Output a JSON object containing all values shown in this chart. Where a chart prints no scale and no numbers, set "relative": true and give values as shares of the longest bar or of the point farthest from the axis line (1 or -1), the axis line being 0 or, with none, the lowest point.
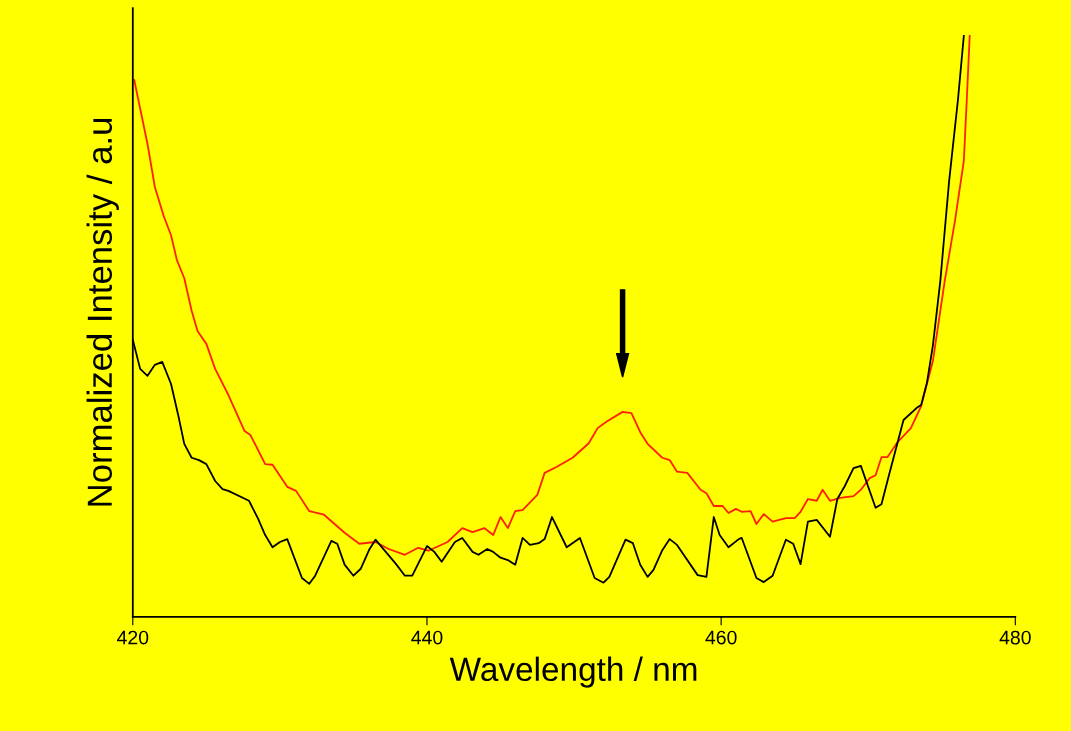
{
  "chart_data": {
    "type": "line",
    "xlabel": "Wavelength / nm",
    "ylabel": "Normalized Intensity / a.u",
    "relative": true,
    "xlim": [
      420,
      480
    ],
    "xticks": [
      420,
      440,
      460,
      480
    ],
    "tick_labels": "x",
    "grid": false,
    "legend": false,
    "marker": "none",
    "line_style": "solid",
    "series": [
      {
        "color": "#ff2000",
        "x": [
          420.1,
          421.0,
          421.5,
          422.1,
          422.6,
          423.0,
          423.5,
          424.0,
          424.4,
          425.0,
          425.6,
          426.5,
          427.6,
          428.0,
          429.0,
          429.5,
          430.5,
          431.1,
          432.0,
          433.0,
          434.4,
          435.4,
          436.5,
          437.4,
          438.5,
          439.4,
          440.1,
          441.4,
          442.4,
          443.1,
          443.9,
          444.5,
          445.0,
          445.5,
          446.0,
          446.5,
          447.5,
          448.0,
          448.8,
          449.9,
          451.0,
          451.6,
          452.2,
          453.3,
          453.9,
          454.5,
          455.0,
          456.0,
          456.5,
          457.0,
          457.7,
          458.6,
          459.0,
          459.5,
          460.1,
          460.5,
          461.0,
          461.4,
          462.0,
          462.4,
          462.9,
          463.5,
          464.4,
          465.0,
          465.4,
          465.9,
          466.5,
          466.9,
          467.4,
          468.1,
          469.0,
          469.5,
          470.1,
          470.5,
          470.9,
          471.3,
          472.0,
          472.9,
          473.6,
          474.4,
          475.2,
          475.9,
          476.5,
          476.7,
          476.9
        ],
        "values": [
          0.924,
          0.814,
          0.74,
          0.69,
          0.657,
          0.614,
          0.583,
          0.527,
          0.492,
          0.47,
          0.427,
          0.382,
          0.32,
          0.313,
          0.263,
          0.262,
          0.224,
          0.217,
          0.182,
          0.176,
          0.145,
          0.126,
          0.129,
          0.117,
          0.107,
          0.119,
          0.114,
          0.129,
          0.153,
          0.146,
          0.153,
          0.141,
          0.172,
          0.153,
          0.182,
          0.184,
          0.21,
          0.248,
          0.258,
          0.274,
          0.299,
          0.325,
          0.336,
          0.353,
          0.351,
          0.318,
          0.298,
          0.274,
          0.27,
          0.25,
          0.248,
          0.219,
          0.213,
          0.191,
          0.191,
          0.179,
          0.186,
          0.181,
          0.182,
          0.16,
          0.177,
          0.164,
          0.17,
          0.17,
          0.181,
          0.203,
          0.2,
          0.219,
          0.2,
          0.205,
          0.208,
          0.219,
          0.239,
          0.244,
          0.275,
          0.275,
          0.301,
          0.325,
          0.363,
          0.441,
          0.578,
          0.682,
          0.785,
          0.89,
          1.0
        ]
      },
      {
        "color": "#000000",
        "x": [
          420.0,
          420.5,
          421.0,
          421.5,
          422.0,
          422.6,
          423.1,
          423.5,
          424.0,
          424.5,
          425.0,
          425.6,
          426.1,
          426.5,
          427.9,
          428.5,
          429.0,
          429.5,
          430.0,
          430.5,
          431.5,
          432.0,
          432.4,
          433.5,
          433.9,
          434.4,
          435.0,
          435.5,
          436.1,
          436.5,
          437.9,
          438.5,
          439.0,
          440.0,
          440.5,
          441.0,
          441.9,
          442.4,
          443.1,
          443.5,
          444.1,
          444.5,
          445.0,
          445.5,
          446.0,
          446.5,
          447.0,
          447.6,
          448.0,
          448.5,
          449.5,
          450.4,
          451.4,
          452.0,
          452.4,
          453.5,
          454.0,
          454.5,
          455.0,
          455.4,
          456.0,
          456.5,
          457.0,
          458.4,
          459.0,
          459.5,
          459.9,
          460.5,
          461.2,
          461.4,
          462.4,
          462.9,
          463.5,
          464.4,
          464.9,
          465.4,
          465.9,
          466.5,
          467.4,
          467.9,
          468.4,
          469.0,
          469.5,
          470.5,
          470.9,
          471.4,
          472.4,
          473.3,
          473.6,
          474.0,
          474.4,
          474.9,
          475.5,
          476.1,
          476.5
        ],
        "values": [
          0.477,
          0.427,
          0.415,
          0.434,
          0.439,
          0.401,
          0.346,
          0.298,
          0.274,
          0.27,
          0.263,
          0.234,
          0.22,
          0.217,
          0.2,
          0.17,
          0.141,
          0.12,
          0.129,
          0.134,
          0.067,
          0.057,
          0.071,
          0.131,
          0.126,
          0.09,
          0.071,
          0.083,
          0.117,
          0.133,
          0.091,
          0.071,
          0.071,
          0.122,
          0.112,
          0.095,
          0.129,
          0.136,
          0.112,
          0.107,
          0.117,
          0.112,
          0.102,
          0.098,
          0.09,
          0.136,
          0.124,
          0.127,
          0.134,
          0.172,
          0.12,
          0.136,
          0.067,
          0.059,
          0.069,
          0.133,
          0.127,
          0.09,
          0.069,
          0.081,
          0.115,
          0.134,
          0.124,
          0.072,
          0.069,
          0.172,
          0.141,
          0.12,
          0.134,
          0.136,
          0.067,
          0.06,
          0.071,
          0.133,
          0.126,
          0.091,
          0.164,
          0.167,
          0.138,
          0.203,
          0.225,
          0.256,
          0.26,
          0.188,
          0.194,
          0.243,
          0.339,
          0.36,
          0.365,
          0.404,
          0.468,
          0.578,
          0.75,
          0.89,
          1.0
        ]
      }
    ]
  }
}
